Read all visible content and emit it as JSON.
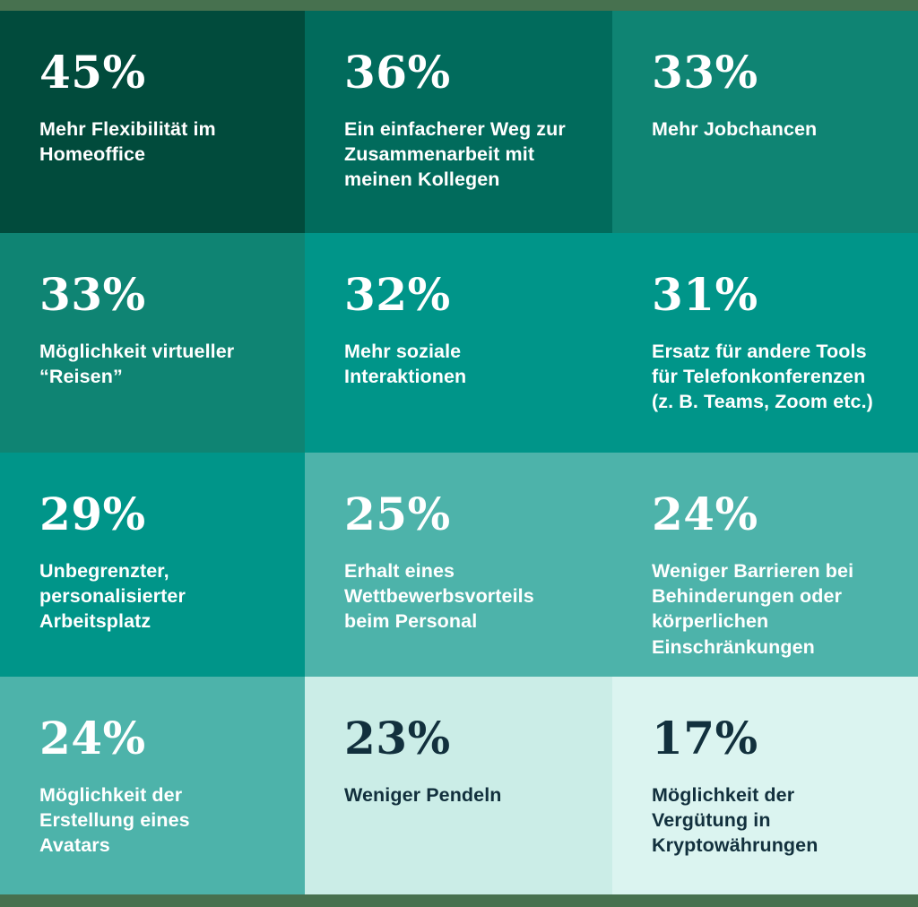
{
  "frame": {
    "border_color": "#47714F",
    "page_background": "#FFFFFF"
  },
  "palette": {
    "tile_darkest": "#014B3C",
    "tile_dark": "#016B5C",
    "tile_deep_teal": "#0F8473",
    "tile_teal": "#009589",
    "tile_seafoam": "#4DB3AA",
    "tile_mint": "#CBEDE7",
    "tile_lightest_mint": "#DBF4F0",
    "text_light": "#FFFFFF",
    "text_ink": "#12303D"
  },
  "chart_data": {
    "type": "table",
    "title": "",
    "unit": "%",
    "categories": [
      "Mehr Flexibilität im Homeoffice",
      "Ein einfacherer Weg zur Zusammenarbeit mit meinen Kollegen",
      "Mehr Jobchancen",
      "Möglichkeit virtueller “Reisen”",
      "Mehr soziale Interaktionen",
      "Ersatz für andere Tools für Telefonkonferenzen (z. B. Teams, Zoom etc.)",
      "Unbegrenzter, personalisierter Arbeitsplatz",
      "Erhalt eines Wettbewerbsvorteils beim Personal",
      "Weniger Barrieren bei Behinderungen oder körperlichen Einschränkungen",
      "Möglichkeit der Erstellung eines Avatars",
      "Weniger Pendeln",
      "Möglichkeit der Vergütung in Kryptowährungen"
    ],
    "values": [
      45,
      36,
      33,
      33,
      32,
      31,
      29,
      25,
      24,
      24,
      23,
      17
    ],
    "layout": "4x3 tile grid, values descending left-to-right top-to-bottom, darker tile = higher value"
  },
  "grid": {
    "tiles": [
      {
        "value": "45%",
        "label_lines": [
          "Mehr Flexibilität im",
          "Homeoffice"
        ],
        "bg": "#014B3C",
        "text_color": "#FFFFFF"
      },
      {
        "value": "36%",
        "label_lines": [
          "Ein einfacherer Weg zur",
          "Zusammenarbeit mit",
          "meinen Kollegen"
        ],
        "bg": "#016B5C",
        "text_color": "#FFFFFF"
      },
      {
        "value": "33%",
        "label_lines": [
          "Mehr Jobchancen"
        ],
        "bg": "#0F8473",
        "text_color": "#FFFFFF"
      },
      {
        "value": "33%",
        "label_lines": [
          "Möglichkeit virtueller",
          "“Reisen”"
        ],
        "bg": "#0F8473",
        "text_color": "#FFFFFF"
      },
      {
        "value": "32%",
        "label_lines": [
          "Mehr soziale",
          "Interaktionen"
        ],
        "bg": "#009589",
        "text_color": "#FFFFFF"
      },
      {
        "value": "31%",
        "label_lines": [
          "Ersatz für andere Tools",
          "für Telefonkonferenzen",
          "(z. B. Teams, Zoom etc.)"
        ],
        "bg": "#009589",
        "text_color": "#FFFFFF"
      },
      {
        "value": "29%",
        "label_lines": [
          "Unbegrenzter,",
          "personalisierter",
          "Arbeitsplatz"
        ],
        "bg": "#009589",
        "text_color": "#FFFFFF"
      },
      {
        "value": "25%",
        "label_lines": [
          "Erhalt eines",
          "Wettbewerbsvorteils",
          "beim Personal"
        ],
        "bg": "#4DB3AA",
        "text_color": "#FFFFFF"
      },
      {
        "value": "24%",
        "label_lines": [
          "Weniger Barrieren bei",
          "Behinderungen oder",
          "körperlichen",
          "Einschränkungen"
        ],
        "bg": "#4DB3AA",
        "text_color": "#FFFFFF"
      },
      {
        "value": "24%",
        "label_lines": [
          "Möglichkeit der",
          "Erstellung eines",
          "Avatars"
        ],
        "bg": "#4DB3AA",
        "text_color": "#FFFFFF"
      },
      {
        "value": "23%",
        "label_lines": [
          "Weniger Pendeln"
        ],
        "bg": "#CBEDE7",
        "text_color": "#12303D"
      },
      {
        "value": "17%",
        "label_lines": [
          "Möglichkeit der",
          "Vergütung in",
          "Kryptowährungen"
        ],
        "bg": "#DBF4F0",
        "text_color": "#12303D"
      }
    ]
  }
}
